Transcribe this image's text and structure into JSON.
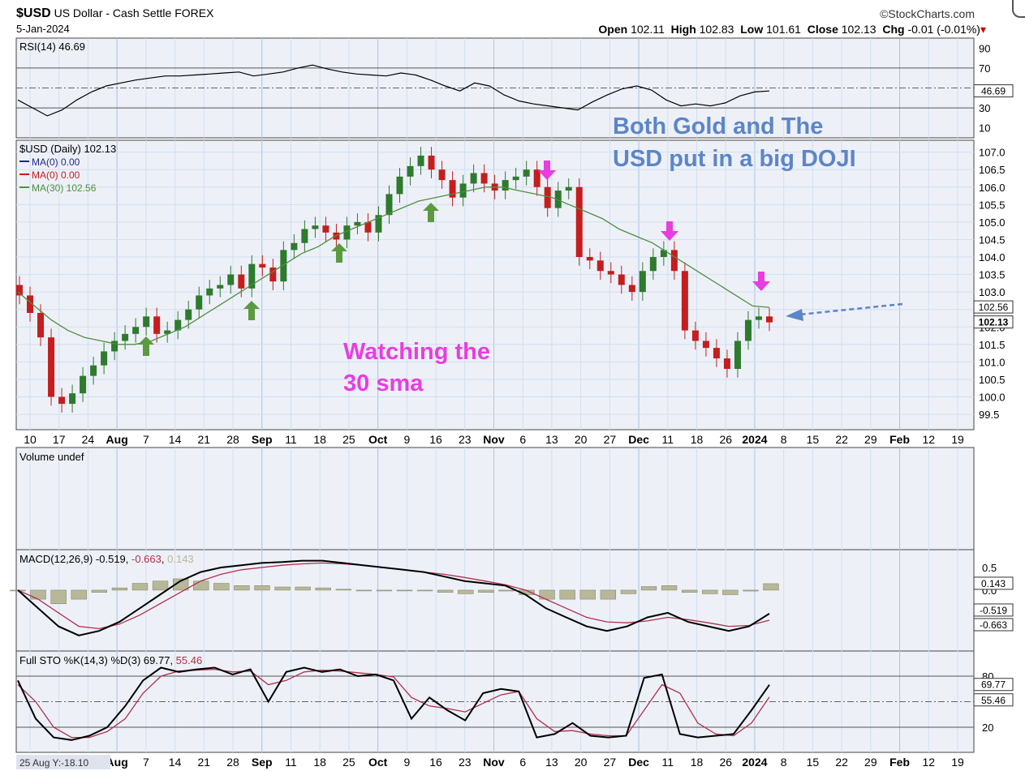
{
  "header": {
    "symbol": "$USD",
    "name": "US Dollar - Cash Settle",
    "exchange": "FOREX",
    "date": "5-Jan-2024",
    "brand": "©StockCharts.com",
    "open_label": "Open",
    "open": "102.11",
    "high_label": "High",
    "high": "102.83",
    "low_label": "Low",
    "low": "101.61",
    "close_label": "Close",
    "close": "102.13",
    "chg_label": "Chg",
    "chg": "-0.01 (-0.01%)"
  },
  "colors": {
    "panel_bg": "#eef0f8",
    "grid": "#cfe0f0",
    "up": "#2e7a2e",
    "down": "#c41e1e",
    "ma30": "#4f8f3f",
    "rsi": "#000000",
    "macd": "#000000",
    "signal": "#b0304a",
    "hist": "#b8b898",
    "sto_k": "#000000",
    "sto_d": "#b0304a",
    "green_arrow": "#5a9b3f",
    "magenta": "#e83de0",
    "annotation_blue": "#5b86c8"
  },
  "chart_data": [
    {
      "type": "line",
      "panel": "RSI",
      "title": "RSI(14) 46.69",
      "ylim": [
        0,
        100
      ],
      "yticks": [
        "90",
        "70",
        "50",
        "30",
        "10"
      ],
      "yticks_values": [
        90,
        70,
        50,
        30,
        10
      ],
      "current_label": "46.69",
      "series": [
        {
          "name": "RSI(14)",
          "values": [
            38,
            30,
            22,
            28,
            38,
            46,
            52,
            55,
            58,
            60,
            62,
            62,
            63,
            64,
            65,
            66,
            62,
            64,
            66,
            70,
            73,
            69,
            66,
            64,
            63,
            62,
            65,
            63,
            58,
            52,
            47,
            55,
            52,
            43,
            37,
            34,
            32,
            30,
            28,
            36,
            43,
            49,
            52,
            48,
            38,
            32,
            34,
            32,
            35,
            42,
            46,
            47
          ]
        }
      ]
    },
    {
      "type": "candlestick",
      "panel": "Price",
      "title": "$USD (Daily) 102.13",
      "legend": [
        {
          "label": "MA(0) 0.00",
          "color": "#1c2a8a"
        },
        {
          "label": "MA(0) 0.00",
          "color": "#c41e1e"
        },
        {
          "label": "MA(30) 102.56",
          "color": "#4f8f3f"
        }
      ],
      "ylim": [
        99.2,
        107.2
      ],
      "yticks": [
        "107.0",
        "106.5",
        "106.0",
        "105.5",
        "105.0",
        "104.5",
        "104.0",
        "103.5",
        "103.0",
        "102.5",
        "102.0",
        "101.5",
        "101.0",
        "100.5",
        "100.0",
        "99.5"
      ],
      "yticks_values": [
        107.0,
        106.5,
        106.0,
        105.5,
        105.0,
        104.5,
        104.0,
        103.5,
        103.0,
        102.5,
        102.0,
        101.5,
        101.0,
        100.5,
        100.0,
        99.5
      ],
      "price_tags": [
        "102.56",
        "102.13"
      ],
      "close": [
        102.9,
        102.4,
        101.7,
        100.0,
        99.8,
        100.1,
        100.6,
        100.9,
        101.3,
        101.6,
        101.8,
        102.0,
        102.3,
        101.8,
        101.9,
        102.2,
        102.5,
        102.9,
        103.1,
        103.2,
        103.5,
        103.1,
        103.8,
        103.7,
        103.3,
        104.2,
        104.4,
        104.8,
        104.9,
        104.7,
        104.5,
        104.9,
        105.0,
        104.7,
        105.2,
        105.8,
        106.3,
        106.6,
        106.9,
        106.5,
        106.2,
        105.7,
        106.1,
        106.4,
        106.1,
        105.9,
        106.2,
        106.3,
        106.5,
        106.0,
        105.4,
        105.9,
        106.0,
        104.0,
        103.9,
        103.6,
        103.5,
        103.2,
        103.0,
        103.6,
        104.0,
        104.2,
        103.6,
        101.9,
        101.6,
        101.4,
        101.1,
        100.8,
        101.6,
        102.2,
        102.3,
        102.13
      ],
      "ma30": [
        103.0,
        102.6,
        102.2,
        101.9,
        101.7,
        101.6,
        101.5,
        101.5,
        101.6,
        101.8,
        102.0,
        102.3,
        102.6,
        102.9,
        103.2,
        103.5,
        103.8,
        104.1,
        104.3,
        104.6,
        104.8,
        105.0,
        105.2,
        105.4,
        105.6,
        105.7,
        105.8,
        105.9,
        106.0,
        106.0,
        105.9,
        105.8,
        105.7,
        105.5,
        105.3,
        105.1,
        104.8,
        104.6,
        104.4,
        104.1,
        103.8,
        103.5,
        103.2,
        102.9,
        102.6,
        102.56
      ]
    },
    {
      "type": "bar",
      "panel": "Volume",
      "title": "Volume undef",
      "values": []
    },
    {
      "type": "line",
      "panel": "MACD",
      "title": "MACD(12,26,9) -0.519, -0.663, 0.143",
      "title_parts": [
        "MACD(12,26,9) -0.519, ",
        "-0.663",
        ", ",
        "0.143"
      ],
      "ylim": [
        -1.2,
        0.75
      ],
      "yticks": [
        "0.5",
        "0.0"
      ],
      "yticks_values": [
        0.5,
        0.0
      ],
      "current_labels": [
        "0.143",
        "-0.519",
        "-0.663"
      ],
      "series": [
        {
          "name": "MACD",
          "values": [
            0.0,
            -0.4,
            -0.8,
            -1.0,
            -0.9,
            -0.7,
            -0.4,
            -0.1,
            0.2,
            0.4,
            0.5,
            0.55,
            0.6,
            0.62,
            0.65,
            0.65,
            0.6,
            0.55,
            0.5,
            0.45,
            0.4,
            0.3,
            0.2,
            0.15,
            0.1,
            -0.1,
            -0.4,
            -0.6,
            -0.8,
            -0.9,
            -0.8,
            -0.6,
            -0.5,
            -0.7,
            -0.8,
            -0.9,
            -0.8,
            -0.519
          ]
        },
        {
          "name": "Signal",
          "values": [
            0.0,
            -0.2,
            -0.5,
            -0.8,
            -0.85,
            -0.75,
            -0.55,
            -0.3,
            -0.05,
            0.2,
            0.35,
            0.45,
            0.5,
            0.55,
            0.58,
            0.6,
            0.58,
            0.55,
            0.5,
            0.45,
            0.4,
            0.35,
            0.28,
            0.2,
            0.12,
            0.0,
            -0.2,
            -0.4,
            -0.6,
            -0.7,
            -0.72,
            -0.68,
            -0.6,
            -0.65,
            -0.72,
            -0.8,
            -0.78,
            -0.663
          ]
        },
        {
          "name": "Histogram",
          "values": [
            0.0,
            -0.2,
            -0.3,
            -0.2,
            -0.05,
            0.05,
            0.15,
            0.2,
            0.25,
            0.2,
            0.15,
            0.1,
            0.1,
            0.07,
            0.07,
            0.05,
            0.02,
            0.0,
            0.0,
            0.0,
            0.0,
            -0.05,
            -0.08,
            -0.05,
            -0.02,
            -0.1,
            -0.2,
            -0.2,
            -0.2,
            -0.2,
            -0.08,
            0.08,
            0.1,
            -0.05,
            -0.08,
            -0.1,
            -0.02,
            0.143
          ]
        }
      ]
    },
    {
      "type": "line",
      "panel": "Full STO",
      "title": "Full STO %K(14,3) %D(3) 69.77, 55.46",
      "title_parts": [
        "Full STO %K(14,3) %D(3) 69.77, ",
        "55.46"
      ],
      "ylim": [
        0,
        100
      ],
      "yticks": [
        "80",
        "20"
      ],
      "yticks_values": [
        80,
        20
      ],
      "current_labels": [
        "69.77",
        "55.46"
      ],
      "series": [
        {
          "name": "%K",
          "values": [
            75,
            30,
            8,
            5,
            10,
            20,
            45,
            75,
            90,
            85,
            88,
            90,
            82,
            88,
            50,
            85,
            90,
            85,
            88,
            80,
            82,
            75,
            30,
            55,
            40,
            28,
            60,
            65,
            62,
            8,
            12,
            25,
            10,
            8,
            10,
            78,
            82,
            12,
            8,
            10,
            12,
            40,
            69.77
          ]
        },
        {
          "name": "%D",
          "values": [
            70,
            50,
            20,
            8,
            8,
            15,
            30,
            60,
            80,
            86,
            87,
            88,
            85,
            86,
            70,
            75,
            85,
            87,
            86,
            84,
            82,
            79,
            55,
            45,
            42,
            38,
            48,
            58,
            62,
            30,
            15,
            16,
            12,
            10,
            10,
            40,
            70,
            60,
            25,
            12,
            10,
            25,
            55.46
          ]
        }
      ]
    }
  ],
  "x_axis_labels": [
    "10",
    "17",
    "24",
    "Aug",
    "7",
    "14",
    "21",
    "28",
    "Sep",
    "11",
    "18",
    "25",
    "Oct",
    "9",
    "16",
    "23",
    "Nov",
    "6",
    "13",
    "20",
    "27",
    "Dec",
    "11",
    "18",
    "26",
    "2024",
    "8",
    "15",
    "22",
    "29",
    "Feb",
    "12",
    "19"
  ],
  "x_axis_labels_bottom": [
    "Aug",
    "7",
    "14",
    "21",
    "28",
    "Sep",
    "11",
    "18",
    "25",
    "Oct",
    "9",
    "16",
    "23",
    "Nov",
    "6",
    "13",
    "20",
    "27",
    "Dec",
    "11",
    "18",
    "26",
    "2024",
    "8",
    "15",
    "22",
    "29",
    "Feb",
    "12",
    "19"
  ],
  "cursor_readout": "25 Aug Y:-18.10",
  "annotations": {
    "doji_line1": "Both Gold and The",
    "doji_line2": "USD put in a big DOJI",
    "sma_line1": "Watching the",
    "sma_line2": "30 sma"
  }
}
